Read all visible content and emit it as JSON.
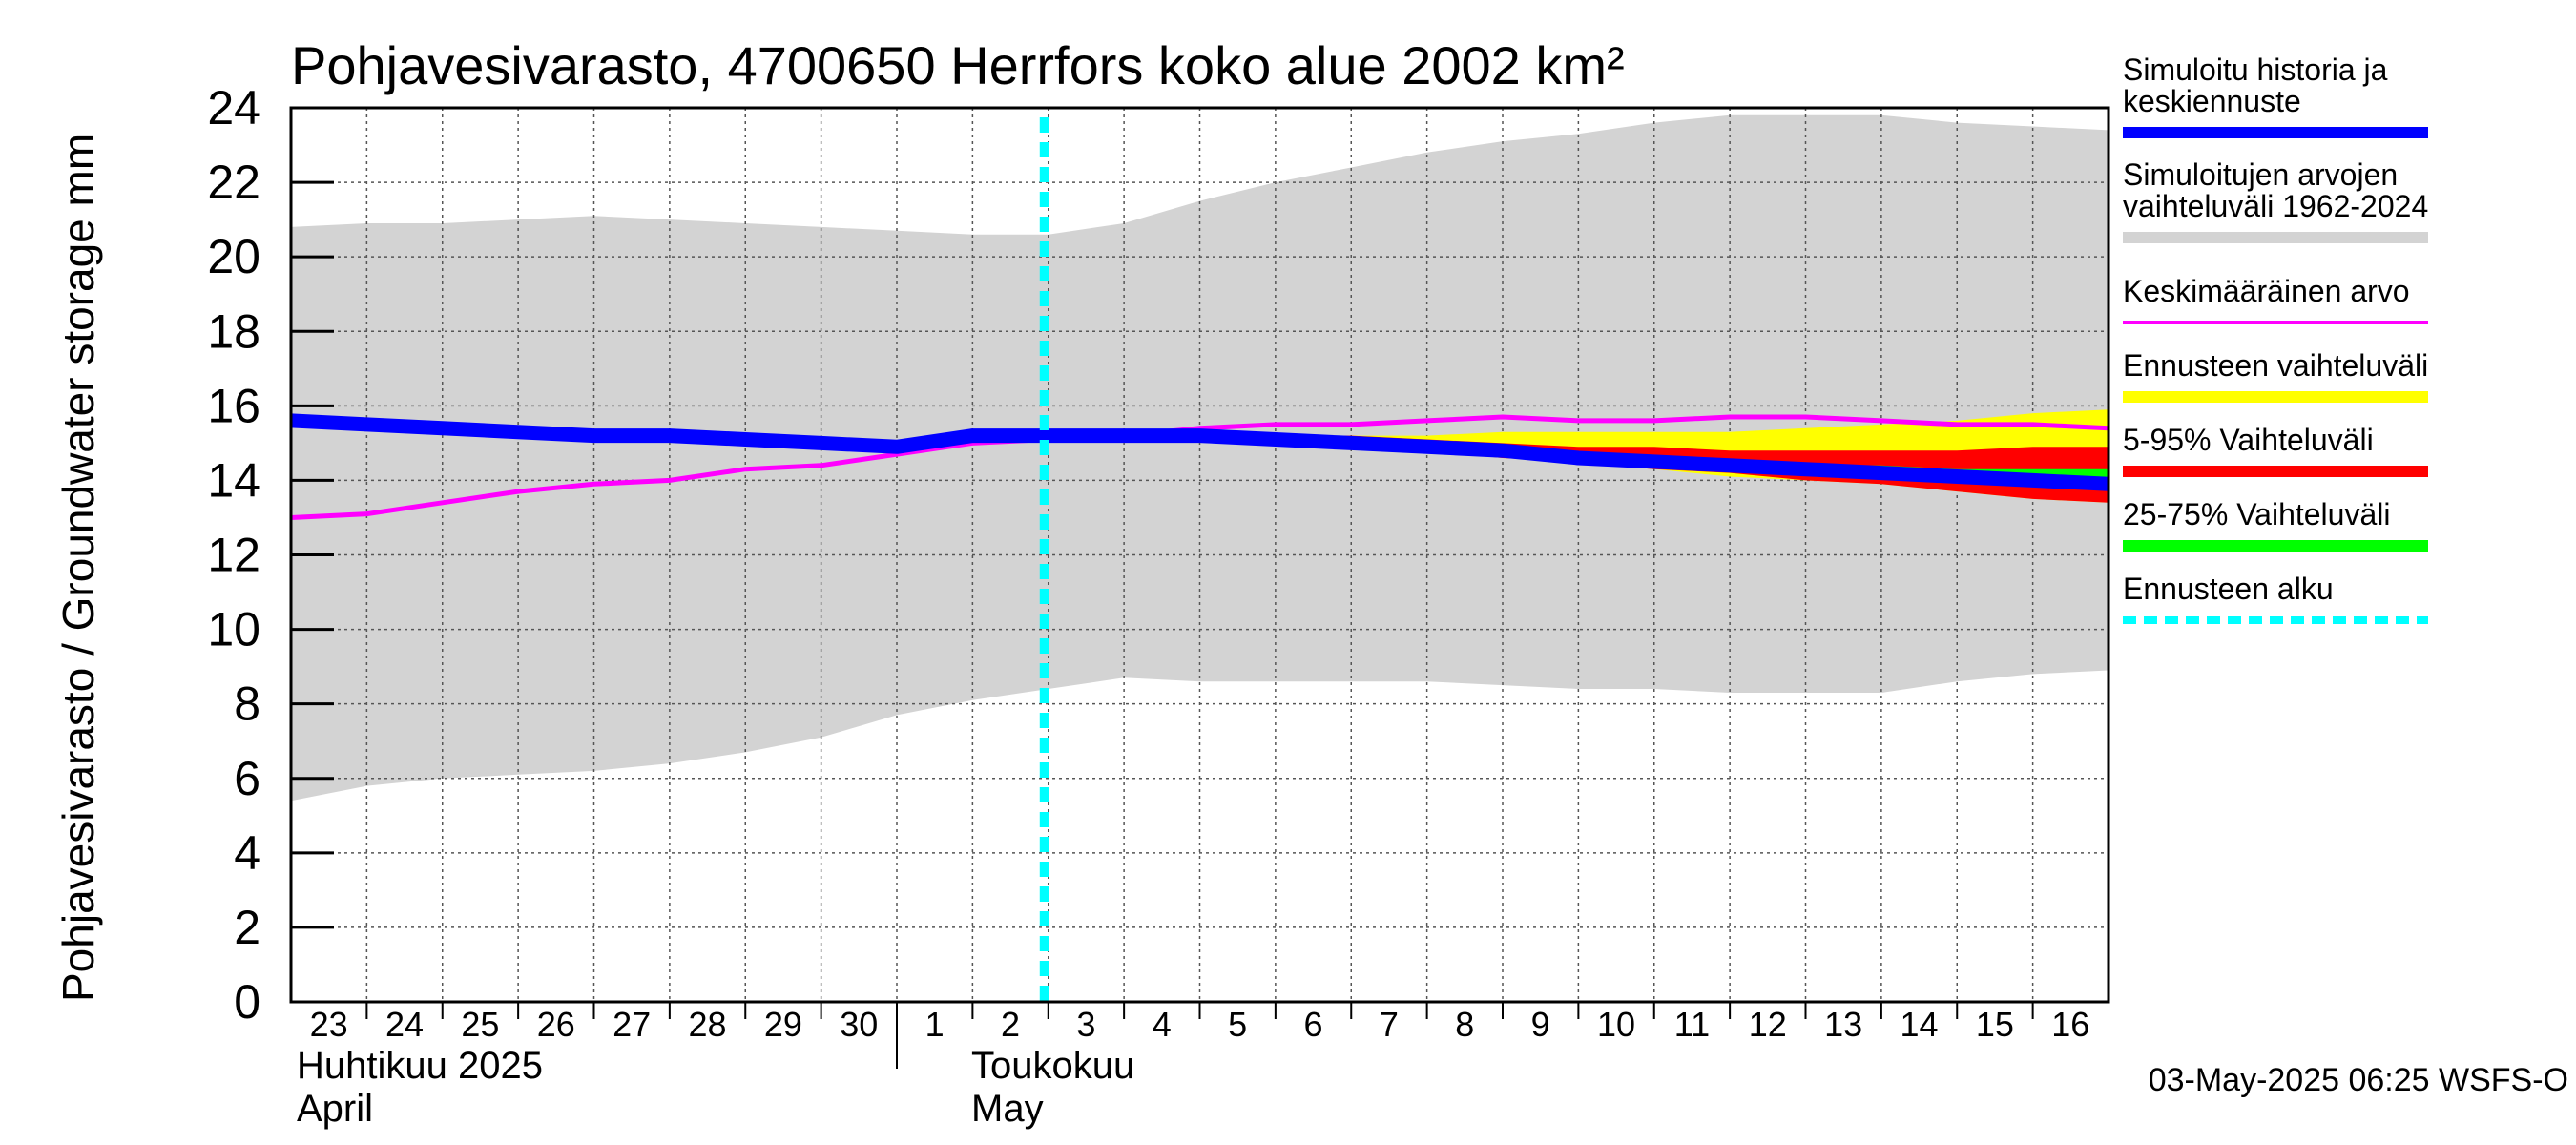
{
  "chart_data": {
    "type": "area",
    "title": "Pohjavesivarasto, 4700650 Herrfors koko alue 2002 km²",
    "ylabel": "Pohjavesivarasto / Groundwater storage   mm",
    "ylim": [
      0,
      24
    ],
    "yticks": [
      0,
      2,
      4,
      6,
      8,
      10,
      12,
      14,
      16,
      18,
      20,
      22,
      24
    ],
    "grid": true,
    "day_labels": [
      "23",
      "24",
      "25",
      "26",
      "27",
      "28",
      "29",
      "30",
      "1",
      "2",
      "3",
      "4",
      "5",
      "6",
      "7",
      "8",
      "9",
      "10",
      "11",
      "12",
      "13",
      "14",
      "15",
      "16"
    ],
    "months": [
      {
        "line1": "Huhtikuu  2025",
        "line2": "April"
      },
      {
        "line1": "Toukokuu",
        "line2": "May"
      }
    ],
    "x": [
      "2025-04-23",
      "2025-04-24",
      "2025-04-25",
      "2025-04-26",
      "2025-04-27",
      "2025-04-28",
      "2025-04-29",
      "2025-04-30",
      "2025-05-01",
      "2025-05-02",
      "2025-05-03",
      "2025-05-04",
      "2025-05-05",
      "2025-05-06",
      "2025-05-07",
      "2025-05-08",
      "2025-05-09",
      "2025-05-10",
      "2025-05-11",
      "2025-05-12",
      "2025-05-13",
      "2025-05-14",
      "2025-05-15",
      "2025-05-16",
      "2025-05-17"
    ],
    "forecast_start": "2025-05-03",
    "range_1962_2024": {
      "upper": [
        20.8,
        20.9,
        20.9,
        21.0,
        21.1,
        21.0,
        20.9,
        20.8,
        20.7,
        20.6,
        20.6,
        20.9,
        21.5,
        22.0,
        22.4,
        22.8,
        23.1,
        23.3,
        23.6,
        23.8,
        23.8,
        23.8,
        23.6,
        23.5,
        23.4
      ],
      "lower": [
        5.4,
        5.8,
        6.0,
        6.1,
        6.2,
        6.4,
        6.7,
        7.1,
        7.7,
        8.1,
        8.4,
        8.7,
        8.6,
        8.6,
        8.6,
        8.6,
        8.5,
        8.4,
        8.4,
        8.3,
        8.3,
        8.3,
        8.6,
        8.8,
        8.9
      ]
    },
    "mean": [
      13.0,
      13.1,
      13.4,
      13.7,
      13.9,
      14.0,
      14.3,
      14.4,
      14.7,
      15.0,
      15.1,
      15.2,
      15.4,
      15.5,
      15.5,
      15.6,
      15.7,
      15.6,
      15.6,
      15.7,
      15.7,
      15.6,
      15.5,
      15.5,
      15.4
    ],
    "history_forecast": [
      15.6,
      15.5,
      15.4,
      15.3,
      15.2,
      15.2,
      15.1,
      15.0,
      14.9,
      15.2,
      15.2,
      15.2,
      15.2,
      15.1,
      15.0,
      14.9,
      14.8,
      14.6,
      14.5,
      14.4,
      14.3,
      14.2,
      14.1,
      14.0,
      13.9
    ],
    "forecast_range": {
      "upper": [
        null,
        null,
        null,
        null,
        null,
        null,
        null,
        null,
        null,
        null,
        15.2,
        15.2,
        15.2,
        15.2,
        15.2,
        15.2,
        15.3,
        15.3,
        15.3,
        15.3,
        15.4,
        15.5,
        15.6,
        15.8,
        15.9
      ],
      "lower": [
        null,
        null,
        null,
        null,
        null,
        null,
        null,
        null,
        null,
        null,
        15.2,
        15.2,
        15.2,
        15.1,
        15.0,
        14.8,
        14.6,
        14.5,
        14.3,
        14.1,
        14.0,
        13.9,
        13.7,
        13.5,
        13.4
      ]
    },
    "p5_95": {
      "upper": [
        null,
        null,
        null,
        null,
        null,
        null,
        null,
        null,
        null,
        null,
        15.2,
        15.2,
        15.2,
        15.2,
        15.2,
        15.1,
        15.0,
        14.9,
        14.9,
        14.8,
        14.8,
        14.8,
        14.8,
        14.9,
        14.9
      ],
      "lower": [
        null,
        null,
        null,
        null,
        null,
        null,
        null,
        null,
        null,
        null,
        15.2,
        15.2,
        15.2,
        15.1,
        15.0,
        14.8,
        14.6,
        14.5,
        14.3,
        14.2,
        14.0,
        13.9,
        13.7,
        13.5,
        13.4
      ]
    },
    "p25_75": {
      "upper": [
        null,
        null,
        null,
        null,
        null,
        null,
        null,
        null,
        null,
        null,
        15.2,
        15.2,
        15.2,
        15.1,
        15.0,
        14.9,
        14.8,
        14.7,
        14.6,
        14.5,
        14.4,
        14.4,
        14.3,
        14.3,
        14.3
      ],
      "lower": [
        null,
        null,
        null,
        null,
        null,
        null,
        null,
        null,
        null,
        null,
        15.2,
        15.2,
        15.2,
        15.1,
        15.0,
        14.9,
        14.7,
        14.6,
        14.4,
        14.3,
        14.2,
        14.1,
        14.0,
        13.9,
        13.8
      ]
    },
    "legend": [
      {
        "text": "Simuloitu historia ja|keskiennuste",
        "color": "#0000ff",
        "style": "solid"
      },
      {
        "text": "Simuloitujen arvojen|vaihteluväli 1962-2024",
        "color": "#d3d3d3",
        "style": "solid"
      },
      {
        "text": "Keskimääräinen arvo",
        "color": "#ff00ff",
        "style": "thin"
      },
      {
        "text": "Ennusteen vaihteluväli",
        "color": "#ffff00",
        "style": "solid"
      },
      {
        "text": "5-95% Vaihteluväli",
        "color": "#ff0000",
        "style": "solid"
      },
      {
        "text": "25-75% Vaihteluväli",
        "color": "#00ff00",
        "style": "solid"
      },
      {
        "text": "Ennusteen alku",
        "color": "#00ffff",
        "style": "dashed"
      }
    ],
    "colors": {
      "range": "#d3d3d3",
      "mean": "#ff00ff",
      "history": "#0000ff",
      "forecast_range": "#ffff00",
      "p5_95": "#ff0000",
      "p25_75": "#00ff00",
      "forecast_start": "#00ffff"
    },
    "footer": "03-May-2025 06:25 WSFS-O"
  }
}
